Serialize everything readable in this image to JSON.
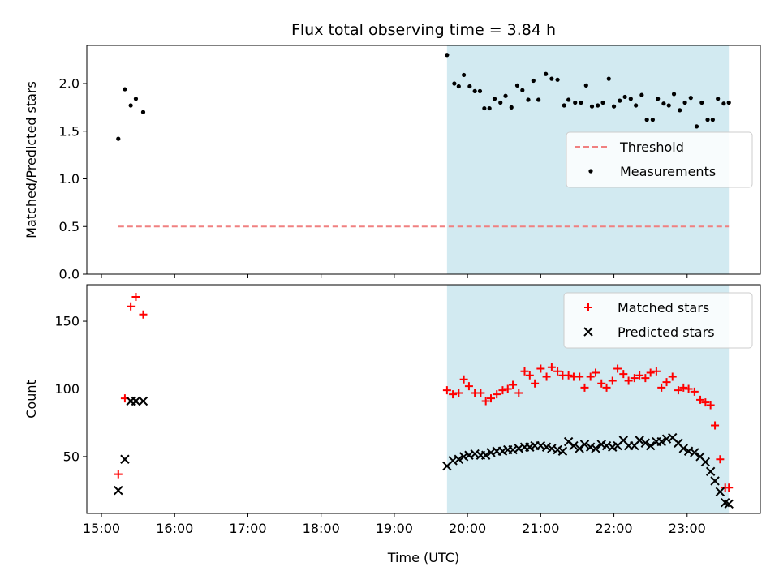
{
  "chart_data": {
    "title": "Flux total observing time = 3.84 h",
    "xlabel": "Time (UTC)",
    "x_ticks": [
      "15:00",
      "16:00",
      "17:00",
      "18:00",
      "19:00",
      "20:00",
      "21:00",
      "22:00",
      "23:00"
    ],
    "x_range_hours": [
      14.8,
      24.0
    ],
    "shaded_span_hours": [
      19.72,
      23.57
    ],
    "colors": {
      "shade": "#add8e6",
      "matched": "#ff0000",
      "predicted": "#000000",
      "threshold": "#f08080",
      "measurement": "#000000"
    },
    "panels": [
      {
        "type": "scatter",
        "ylabel": "Matched/Predicted stars",
        "ylim": [
          0,
          2.4
        ],
        "y_ticks": [
          "0.0",
          "0.5",
          "1.0",
          "1.5",
          "2.0"
        ],
        "legend_placement": "center-right",
        "series": [
          {
            "name": "Threshold",
            "style": "dashed-line",
            "x": [
              15.23,
              23.57
            ],
            "y": [
              0.5,
              0.5
            ]
          },
          {
            "name": "Measurements",
            "style": "dot",
            "x": [
              15.23,
              15.32,
              15.4,
              15.47,
              15.57,
              19.72,
              19.82,
              19.88,
              19.95,
              20.03,
              20.1,
              20.17,
              20.23,
              20.3,
              20.37,
              20.45,
              20.52,
              20.6,
              20.68,
              20.75,
              20.83,
              20.9,
              20.97,
              21.07,
              21.15,
              21.23,
              21.32,
              21.38,
              21.47,
              21.55,
              21.62,
              21.7,
              21.78,
              21.85,
              21.93,
              22.0,
              22.08,
              22.15,
              22.23,
              22.3,
              22.38,
              22.45,
              22.53,
              22.6,
              22.68,
              22.75,
              22.82,
              22.9,
              22.97,
              23.05,
              23.13,
              23.2,
              23.28,
              23.35,
              23.42,
              23.5,
              23.57
            ],
            "y": [
              1.42,
              1.94,
              1.77,
              1.84,
              1.7,
              2.3,
              2.0,
              1.97,
              2.09,
              1.97,
              1.92,
              1.92,
              1.74,
              1.74,
              1.84,
              1.8,
              1.87,
              1.75,
              1.98,
              1.93,
              1.83,
              2.03,
              1.83,
              2.1,
              2.05,
              2.04,
              1.77,
              1.83,
              1.8,
              1.8,
              1.98,
              1.76,
              1.77,
              1.8,
              2.05,
              1.76,
              1.82,
              1.86,
              1.84,
              1.77,
              1.88,
              1.62,
              1.62,
              1.84,
              1.79,
              1.77,
              1.89,
              1.72,
              1.8,
              1.85,
              1.55,
              1.8,
              1.62,
              1.62,
              1.84,
              1.79,
              1.8
            ]
          }
        ]
      },
      {
        "type": "scatter",
        "ylabel": "Count",
        "ylim": [
          8,
          177
        ],
        "y_ticks": [
          "50",
          "100",
          "150"
        ],
        "legend_placement": "top-right",
        "series": [
          {
            "name": "Matched stars",
            "style": "plus",
            "x": [
              15.23,
              15.32,
              15.4,
              15.47,
              15.57,
              19.72,
              19.8,
              19.88,
              19.95,
              20.02,
              20.1,
              20.18,
              20.25,
              20.32,
              20.4,
              20.48,
              20.55,
              20.62,
              20.7,
              20.78,
              20.85,
              20.92,
              21.0,
              21.08,
              21.15,
              21.23,
              21.3,
              21.38,
              21.45,
              21.53,
              21.6,
              21.68,
              21.75,
              21.83,
              21.9,
              21.98,
              22.05,
              22.13,
              22.2,
              22.28,
              22.35,
              22.43,
              22.5,
              22.58,
              22.65,
              22.72,
              22.8,
              22.88,
              22.95,
              23.02,
              23.1,
              23.18,
              23.25,
              23.32,
              23.38,
              23.45,
              23.52,
              23.57
            ],
            "y": [
              37,
              93,
              161,
              168,
              155,
              99,
              96,
              97,
              107,
              102,
              97,
              97,
              91,
              93,
              96,
              99,
              100,
              103,
              97,
              113,
              110,
              104,
              115,
              109,
              116,
              113,
              110,
              110,
              109,
              109,
              101,
              109,
              112,
              104,
              101,
              106,
              115,
              111,
              106,
              108,
              110,
              108,
              112,
              113,
              101,
              105,
              109,
              99,
              101,
              100,
              98,
              92,
              90,
              88,
              73,
              48,
              27,
              27
            ]
          },
          {
            "name": "Predicted stars",
            "style": "x",
            "x": [
              15.23,
              15.32,
              15.4,
              15.47,
              15.57,
              19.72,
              19.8,
              19.88,
              19.95,
              20.02,
              20.1,
              20.18,
              20.25,
              20.32,
              20.4,
              20.48,
              20.55,
              20.62,
              20.7,
              20.78,
              20.85,
              20.92,
              21.0,
              21.08,
              21.15,
              21.23,
              21.3,
              21.38,
              21.45,
              21.53,
              21.6,
              21.68,
              21.75,
              21.83,
              21.9,
              21.98,
              22.05,
              22.13,
              22.2,
              22.28,
              22.35,
              22.43,
              22.5,
              22.58,
              22.65,
              22.72,
              22.8,
              22.88,
              22.95,
              23.02,
              23.1,
              23.18,
              23.25,
              23.32,
              23.38,
              23.45,
              23.52,
              23.57
            ],
            "y": [
              25,
              48,
              91,
              91,
              91,
              43,
              47,
              48,
              50,
              51,
              52,
              51,
              51,
              53,
              54,
              54,
              55,
              55,
              56,
              57,
              57,
              58,
              58,
              57,
              56,
              55,
              54,
              61,
              58,
              56,
              59,
              57,
              56,
              59,
              58,
              57,
              58,
              62,
              58,
              58,
              62,
              60,
              58,
              61,
              61,
              63,
              64,
              60,
              56,
              54,
              53,
              50,
              46,
              39,
              32,
              24,
              16,
              15
            ]
          }
        ]
      }
    ]
  }
}
